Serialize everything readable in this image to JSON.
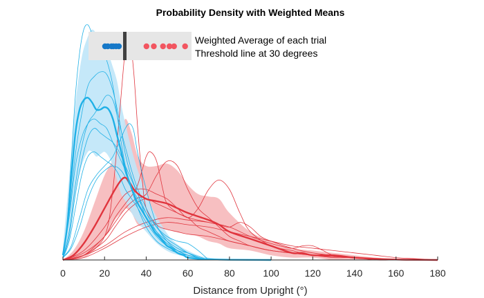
{
  "chart_data": {
    "type": "line",
    "title": "Probability Density with Weighted Means",
    "xlabel": "Distance from Upright (°)",
    "ylabel": "",
    "xlim": [
      0,
      180
    ],
    "ylim": [
      0,
      1
    ],
    "y_axis_visible": false,
    "grid": false,
    "x_ticks": [
      0,
      20,
      40,
      60,
      80,
      100,
      120,
      140,
      160,
      180
    ],
    "threshold": 30,
    "colors": {
      "blue_line": "#1fb0e6",
      "blue_fill": "#bfe6f8",
      "blue_marker": "#1678c8",
      "red_line": "#e0343d",
      "red_fill": "#f7bcbe",
      "red_marker": "#f25560",
      "threshold_line": "#404040",
      "legend_box": "#e6e6e6"
    },
    "legend": {
      "position": "top",
      "entries": [
        "Weighted Average of each trial",
        "Threshold line at 30 degrees"
      ]
    },
    "weighted_means": {
      "blue": [
        15.0,
        16.5,
        18.5,
        19.5,
        21.0,
        22.5
      ],
      "red": [
        37.5,
        41.5,
        46.5,
        50.0,
        52.5,
        58.5
      ]
    },
    "series": [
      {
        "group": "blue",
        "role": "mean",
        "x": [
          0,
          2,
          4,
          6,
          8,
          10,
          12,
          14,
          16,
          18,
          20,
          22,
          24,
          26,
          28,
          30,
          32,
          34,
          36,
          38,
          40,
          42,
          44,
          46,
          48,
          50,
          52,
          55,
          58,
          60,
          65,
          70,
          80,
          100
        ],
        "y": [
          0.02,
          0.14,
          0.35,
          0.54,
          0.64,
          0.68,
          0.69,
          0.67,
          0.64,
          0.64,
          0.65,
          0.64,
          0.6,
          0.53,
          0.46,
          0.38,
          0.33,
          0.28,
          0.24,
          0.21,
          0.18,
          0.15,
          0.12,
          0.1,
          0.08,
          0.06,
          0.05,
          0.03,
          0.02,
          0.01,
          0.005,
          0.003,
          0.001,
          0
        ]
      },
      {
        "group": "blue",
        "role": "band",
        "x": [
          0,
          3,
          6,
          9,
          12,
          14,
          16,
          18,
          20,
          22,
          24,
          26,
          28,
          30,
          33,
          36,
          40,
          44,
          48,
          52,
          56,
          60,
          65,
          70,
          80,
          100
        ],
        "lower": [
          0,
          0.08,
          0.28,
          0.4,
          0.46,
          0.46,
          0.44,
          0.45,
          0.46,
          0.44,
          0.4,
          0.34,
          0.28,
          0.25,
          0.2,
          0.16,
          0.12,
          0.08,
          0.05,
          0.03,
          0.02,
          0.01,
          0.005,
          0,
          0,
          0
        ],
        "upper": [
          0.05,
          0.35,
          0.66,
          0.86,
          0.95,
          0.98,
          0.96,
          0.9,
          0.88,
          0.87,
          0.82,
          0.76,
          0.66,
          0.58,
          0.47,
          0.38,
          0.28,
          0.2,
          0.14,
          0.09,
          0.06,
          0.04,
          0.02,
          0.01,
          0,
          0
        ]
      },
      {
        "group": "blue",
        "role": "trial",
        "x": [
          0,
          2,
          4,
          6,
          8,
          10,
          12,
          14,
          16,
          18,
          20,
          22,
          24,
          26,
          28,
          30,
          33,
          36,
          40,
          45,
          50,
          55,
          60,
          70
        ],
        "y": [
          0.01,
          0.15,
          0.42,
          0.7,
          0.88,
          0.98,
          1.0,
          0.96,
          0.9,
          0.88,
          0.87,
          0.82,
          0.74,
          0.62,
          0.5,
          0.4,
          0.3,
          0.22,
          0.14,
          0.08,
          0.05,
          0.03,
          0.02,
          0
        ]
      },
      {
        "group": "blue",
        "role": "trial",
        "x": [
          0,
          3,
          6,
          9,
          12,
          15,
          18,
          21,
          24,
          27,
          30,
          33,
          36,
          40,
          45,
          50,
          55,
          60,
          65,
          70
        ],
        "y": [
          0.02,
          0.2,
          0.45,
          0.62,
          0.74,
          0.78,
          0.8,
          0.79,
          0.72,
          0.6,
          0.45,
          0.35,
          0.28,
          0.18,
          0.11,
          0.07,
          0.04,
          0.03,
          0.01,
          0
        ]
      },
      {
        "group": "blue",
        "role": "trial",
        "x": [
          0,
          3,
          6,
          9,
          12,
          15,
          18,
          21,
          24,
          27,
          30,
          33,
          36,
          40,
          45,
          50,
          55,
          60,
          65,
          70
        ],
        "y": [
          0.01,
          0.12,
          0.32,
          0.48,
          0.58,
          0.62,
          0.66,
          0.7,
          0.68,
          0.58,
          0.48,
          0.38,
          0.3,
          0.22,
          0.14,
          0.09,
          0.06,
          0.03,
          0.01,
          0
        ]
      },
      {
        "group": "blue",
        "role": "trial",
        "x": [
          0,
          3,
          6,
          9,
          12,
          15,
          18,
          21,
          24,
          27,
          30,
          33,
          36,
          40,
          45,
          50,
          55,
          60,
          70
        ],
        "y": [
          0.02,
          0.18,
          0.4,
          0.52,
          0.58,
          0.6,
          0.58,
          0.56,
          0.5,
          0.44,
          0.38,
          0.3,
          0.24,
          0.18,
          0.12,
          0.08,
          0.05,
          0.03,
          0
        ]
      },
      {
        "group": "blue",
        "role": "trial",
        "x": [
          0,
          3,
          6,
          9,
          12,
          15,
          18,
          21,
          24,
          27,
          30,
          33,
          36,
          40,
          45,
          50,
          55,
          60,
          70
        ],
        "y": [
          0.01,
          0.1,
          0.28,
          0.42,
          0.52,
          0.56,
          0.54,
          0.52,
          0.5,
          0.46,
          0.4,
          0.34,
          0.28,
          0.2,
          0.12,
          0.07,
          0.04,
          0.02,
          0
        ]
      },
      {
        "group": "blue",
        "role": "trial",
        "x": [
          0,
          3,
          6,
          9,
          12,
          15,
          18,
          21,
          24,
          27,
          30,
          33,
          36,
          40,
          45,
          50,
          55,
          60,
          70
        ],
        "y": [
          0.01,
          0.08,
          0.22,
          0.36,
          0.44,
          0.46,
          0.44,
          0.42,
          0.4,
          0.36,
          0.3,
          0.26,
          0.22,
          0.16,
          0.1,
          0.06,
          0.04,
          0.02,
          0
        ]
      },
      {
        "group": "blue",
        "role": "trial",
        "x": [
          0,
          4,
          8,
          12,
          16,
          20,
          24,
          28,
          30,
          32,
          34,
          36,
          40,
          45,
          50,
          55,
          60,
          65,
          70
        ],
        "y": [
          0.01,
          0.06,
          0.18,
          0.3,
          0.36,
          0.4,
          0.44,
          0.52,
          0.56,
          0.58,
          0.55,
          0.45,
          0.3,
          0.15,
          0.08,
          0.04,
          0.02,
          0.01,
          0
        ]
      },
      {
        "group": "blue",
        "role": "trial",
        "x": [
          0,
          4,
          8,
          12,
          16,
          20,
          24,
          28,
          32,
          36,
          40,
          45,
          50,
          55,
          60,
          65,
          70
        ],
        "y": [
          0.01,
          0.05,
          0.14,
          0.26,
          0.34,
          0.38,
          0.4,
          0.38,
          0.32,
          0.26,
          0.2,
          0.14,
          0.1,
          0.08,
          0.07,
          0.04,
          0
        ]
      },
      {
        "group": "red",
        "role": "mean",
        "x": [
          0,
          5,
          10,
          15,
          20,
          25,
          28,
          30,
          32,
          35,
          40,
          45,
          50,
          55,
          60,
          70,
          75,
          80,
          90,
          100,
          110,
          115,
          120,
          130,
          140,
          150,
          160,
          170,
          180
        ],
        "y": [
          0,
          0.02,
          0.07,
          0.14,
          0.22,
          0.3,
          0.34,
          0.35,
          0.33,
          0.29,
          0.26,
          0.25,
          0.24,
          0.22,
          0.2,
          0.17,
          0.15,
          0.12,
          0.09,
          0.06,
          0.03,
          0.03,
          0.02,
          0.02,
          0.01,
          0.005,
          0.002,
          0.001,
          0
        ]
      },
      {
        "group": "red",
        "role": "band",
        "x": [
          0,
          5,
          10,
          15,
          20,
          25,
          28,
          30,
          33,
          36,
          40,
          45,
          50,
          55,
          60,
          65,
          70,
          75,
          80,
          90,
          100,
          110,
          120,
          130,
          140,
          150,
          160,
          180
        ],
        "lower": [
          0,
          0,
          0.01,
          0.04,
          0.1,
          0.17,
          0.2,
          0.22,
          0.2,
          0.15,
          0.14,
          0.13,
          0.13,
          0.12,
          0.11,
          0.1,
          0.08,
          0.07,
          0.05,
          0.04,
          0.02,
          0.01,
          0.01,
          0,
          0,
          0,
          0,
          0
        ],
        "upper": [
          0,
          0.04,
          0.12,
          0.24,
          0.36,
          0.44,
          0.52,
          0.6,
          0.54,
          0.44,
          0.4,
          0.4,
          0.41,
          0.38,
          0.32,
          0.28,
          0.27,
          0.26,
          0.2,
          0.12,
          0.08,
          0.05,
          0.04,
          0.03,
          0.02,
          0.01,
          0.005,
          0
        ]
      },
      {
        "group": "red",
        "role": "trial",
        "x": [
          0,
          10,
          20,
          24,
          27,
          30,
          32,
          34,
          36,
          38,
          40,
          45,
          50,
          55,
          60,
          70,
          80,
          90,
          100,
          110,
          120,
          130,
          140,
          150,
          160,
          170,
          180
        ],
        "y": [
          0,
          0.02,
          0.1,
          0.3,
          0.6,
          0.9,
          0.95,
          0.8,
          0.55,
          0.35,
          0.22,
          0.15,
          0.13,
          0.12,
          0.11,
          0.1,
          0.08,
          0.06,
          0.04,
          0.03,
          0.02,
          0.01,
          0.01,
          0,
          0,
          0,
          0
        ]
      },
      {
        "group": "red",
        "role": "trial",
        "x": [
          0,
          10,
          20,
          25,
          30,
          35,
          38,
          40,
          42,
          45,
          48,
          50,
          55,
          60,
          65,
          70,
          75,
          80,
          90,
          100,
          120,
          140,
          160,
          180
        ],
        "y": [
          0,
          0.03,
          0.1,
          0.18,
          0.24,
          0.3,
          0.38,
          0.44,
          0.46,
          0.42,
          0.3,
          0.24,
          0.2,
          0.18,
          0.14,
          0.12,
          0.1,
          0.08,
          0.06,
          0.04,
          0.02,
          0.01,
          0,
          0
        ]
      },
      {
        "group": "red",
        "role": "trial",
        "x": [
          0,
          10,
          20,
          25,
          30,
          35,
          40,
          45,
          50,
          55,
          60,
          65,
          70,
          75,
          80,
          85,
          90,
          100,
          110,
          120,
          140,
          160,
          180
        ],
        "y": [
          0,
          0.02,
          0.1,
          0.16,
          0.22,
          0.26,
          0.28,
          0.36,
          0.42,
          0.4,
          0.3,
          0.22,
          0.18,
          0.14,
          0.1,
          0.08,
          0.06,
          0.04,
          0.03,
          0.02,
          0.01,
          0,
          0
        ]
      },
      {
        "group": "red",
        "role": "trial",
        "x": [
          0,
          10,
          20,
          25,
          30,
          35,
          40,
          45,
          50,
          55,
          60,
          65,
          70,
          75,
          80,
          85,
          90,
          100,
          110,
          120,
          140,
          160,
          180
        ],
        "y": [
          0,
          0.04,
          0.14,
          0.22,
          0.28,
          0.3,
          0.3,
          0.28,
          0.26,
          0.22,
          0.18,
          0.22,
          0.3,
          0.34,
          0.3,
          0.2,
          0.12,
          0.06,
          0.04,
          0.02,
          0.01,
          0,
          0
        ]
      },
      {
        "group": "red",
        "role": "trial",
        "x": [
          0,
          10,
          20,
          25,
          30,
          35,
          40,
          45,
          50,
          55,
          60,
          70,
          75,
          80,
          85,
          90,
          95,
          100,
          110,
          120,
          140,
          160,
          180
        ],
        "y": [
          0,
          0.02,
          0.08,
          0.14,
          0.2,
          0.24,
          0.26,
          0.24,
          0.22,
          0.2,
          0.18,
          0.16,
          0.15,
          0.14,
          0.16,
          0.14,
          0.1,
          0.08,
          0.05,
          0.03,
          0.01,
          0,
          0
        ]
      },
      {
        "group": "red",
        "role": "trial",
        "x": [
          0,
          10,
          20,
          30,
          40,
          50,
          60,
          70,
          80,
          90,
          100,
          110,
          115,
          120,
          125,
          130,
          140,
          150,
          160,
          180
        ],
        "y": [
          0,
          0.02,
          0.06,
          0.12,
          0.16,
          0.18,
          0.17,
          0.16,
          0.14,
          0.1,
          0.07,
          0.05,
          0.06,
          0.06,
          0.04,
          0.02,
          0.01,
          0.005,
          0,
          0
        ]
      },
      {
        "group": "red",
        "role": "trial",
        "x": [
          0,
          10,
          20,
          30,
          40,
          50,
          60,
          70,
          80,
          90,
          100,
          110,
          120,
          130,
          140,
          150,
          160,
          170,
          180
        ],
        "y": [
          0,
          0.01,
          0.05,
          0.1,
          0.14,
          0.16,
          0.15,
          0.14,
          0.12,
          0.1,
          0.08,
          0.06,
          0.05,
          0.04,
          0.03,
          0.02,
          0.01,
          0.005,
          0
        ]
      }
    ]
  }
}
